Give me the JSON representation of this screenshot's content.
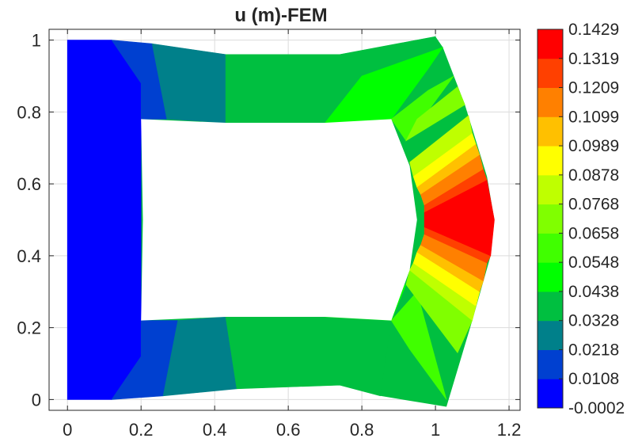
{
  "chart_data": {
    "type": "heatmap",
    "title": "u (m)-FEM",
    "xlabel": "",
    "ylabel": "",
    "xlim": [
      -0.05,
      1.23
    ],
    "ylim": [
      -0.03,
      1.03
    ],
    "xticks": [
      0,
      0.2,
      0.4,
      0.6,
      0.8,
      1,
      1.2
    ],
    "xtick_labels": [
      "0",
      "0.2",
      "0.4",
      "0.6",
      "0.8",
      "1",
      "1.2"
    ],
    "yticks": [
      0,
      0.2,
      0.4,
      0.6,
      0.8,
      1
    ],
    "ytick_labels": [
      "0",
      "0.2",
      "0.4",
      "0.6",
      "0.8",
      "1"
    ],
    "grid": true,
    "colorbar": {
      "position": "right",
      "min": -0.0002,
      "max": 0.1429,
      "levels": [
        -0.0002,
        0.0108,
        0.0218,
        0.0328,
        0.0438,
        0.0548,
        0.0658,
        0.0768,
        0.0878,
        0.0989,
        0.1099,
        0.1209,
        0.1319,
        0.1429
      ],
      "level_labels": [
        "-0.0002",
        "0.0108",
        "0.0218",
        "0.0328",
        "0.0438",
        "0.0548",
        "0.0658",
        "0.0768",
        "0.0878",
        "0.0989",
        "0.1099",
        "0.1209",
        "0.1319",
        "0.1429"
      ],
      "colors": [
        "#0000ff",
        "#0040d0",
        "#00808a",
        "#00bf40",
        "#00ff00",
        "#40ff00",
        "#80ff00",
        "#bfff00",
        "#ffff00",
        "#ffc000",
        "#ff8000",
        "#ff4000",
        "#ff0000"
      ]
    },
    "field_regions": [
      {
        "level": 0,
        "outline": [
          [
            0,
            0
          ],
          [
            0.12,
            0
          ],
          [
            0.2,
            0.12
          ],
          [
            0.2,
            0.88
          ],
          [
            0.12,
            1
          ],
          [
            0,
            1
          ]
        ]
      },
      {
        "level": 1,
        "outline": [
          [
            0.12,
            0
          ],
          [
            0.26,
            0.01
          ],
          [
            0.3,
            0.22
          ],
          [
            0.2,
            0.22
          ],
          [
            0.2,
            0.12
          ]
        ]
      },
      {
        "level": 1,
        "outline": [
          [
            0.12,
            1
          ],
          [
            0.2,
            0.88
          ],
          [
            0.2,
            0.78
          ],
          [
            0.27,
            0.78
          ],
          [
            0.23,
            0.99
          ]
        ]
      },
      {
        "level": 2,
        "outline": [
          [
            0.26,
            0.01
          ],
          [
            0.46,
            0.03
          ],
          [
            0.43,
            0.23
          ],
          [
            0.3,
            0.22
          ]
        ]
      },
      {
        "level": 2,
        "outline": [
          [
            0.23,
            0.99
          ],
          [
            0.27,
            0.78
          ],
          [
            0.43,
            0.77
          ],
          [
            0.43,
            0.96
          ]
        ]
      },
      {
        "level": 3,
        "outline": [
          [
            0.46,
            0.03
          ],
          [
            0.74,
            0.04
          ],
          [
            0.85,
            0.01
          ],
          [
            0.88,
            0.22
          ],
          [
            0.7,
            0.23
          ],
          [
            0.43,
            0.23
          ]
        ]
      },
      {
        "level": 3,
        "outline": [
          [
            0.43,
            0.96
          ],
          [
            0.74,
            0.96
          ],
          [
            1.0,
            1.01
          ],
          [
            0.9,
            0.78
          ],
          [
            0.7,
            0.77
          ],
          [
            0.43,
            0.77
          ]
        ]
      },
      {
        "level": 4,
        "outline": [
          [
            0.7,
            0.23
          ],
          [
            0.88,
            0.22
          ],
          [
            0.92,
            0.32
          ],
          [
            0.78,
            0.24
          ]
        ]
      },
      {
        "level": 4,
        "outline": [
          [
            0.7,
            0.77
          ],
          [
            0.88,
            0.78
          ],
          [
            0.98,
            0.92
          ],
          [
            1.02,
            0.98
          ],
          [
            0.8,
            0.9
          ]
        ]
      },
      {
        "level": 5,
        "outline": [
          [
            0.88,
            0.22
          ],
          [
            0.93,
            0.14
          ],
          [
            1.03,
            0.0
          ],
          [
            0.95,
            0.3
          ]
        ]
      },
      {
        "level": 5,
        "outline": [
          [
            0.88,
            0.78
          ],
          [
            0.98,
            0.86
          ],
          [
            1.05,
            0.9
          ],
          [
            0.92,
            0.72
          ]
        ]
      },
      {
        "level": 6,
        "outline": [
          [
            0.92,
            0.32
          ],
          [
            1.06,
            0.13
          ],
          [
            1.1,
            0.22
          ],
          [
            0.93,
            0.36
          ]
        ]
      },
      {
        "level": 6,
        "outline": [
          [
            0.92,
            0.72
          ],
          [
            1.08,
            0.82
          ],
          [
            1.06,
            0.87
          ],
          [
            0.95,
            0.78
          ]
        ]
      },
      {
        "level": 7,
        "outline": [
          [
            0.93,
            0.36
          ],
          [
            1.1,
            0.22
          ],
          [
            1.11,
            0.26
          ],
          [
            0.94,
            0.38
          ]
        ]
      },
      {
        "level": 7,
        "outline": [
          [
            0.94,
            0.62
          ],
          [
            1.1,
            0.74
          ],
          [
            1.09,
            0.79
          ],
          [
            0.93,
            0.66
          ]
        ]
      },
      {
        "level": 8,
        "outline": [
          [
            0.94,
            0.38
          ],
          [
            1.11,
            0.26
          ],
          [
            1.12,
            0.3
          ],
          [
            0.95,
            0.41
          ]
        ]
      },
      {
        "level": 8,
        "outline": [
          [
            0.95,
            0.59
          ],
          [
            1.11,
            0.71
          ],
          [
            1.1,
            0.74
          ],
          [
            0.94,
            0.62
          ]
        ]
      },
      {
        "level": 9,
        "outline": [
          [
            0.95,
            0.41
          ],
          [
            1.12,
            0.3
          ],
          [
            1.13,
            0.33
          ],
          [
            0.96,
            0.43
          ]
        ]
      },
      {
        "level": 9,
        "outline": [
          [
            0.96,
            0.57
          ],
          [
            1.12,
            0.68
          ],
          [
            1.11,
            0.71
          ],
          [
            0.95,
            0.59
          ]
        ]
      },
      {
        "level": 10,
        "outline": [
          [
            0.96,
            0.43
          ],
          [
            1.13,
            0.33
          ],
          [
            1.14,
            0.38
          ],
          [
            0.97,
            0.46
          ]
        ]
      },
      {
        "level": 10,
        "outline": [
          [
            0.97,
            0.54
          ],
          [
            1.13,
            0.64
          ],
          [
            1.12,
            0.68
          ],
          [
            0.96,
            0.57
          ]
        ]
      },
      {
        "level": 11,
        "outline": [
          [
            0.97,
            0.46
          ],
          [
            1.14,
            0.38
          ],
          [
            1.15,
            0.4
          ],
          [
            0.97,
            0.48
          ]
        ]
      },
      {
        "level": 11,
        "outline": [
          [
            0.97,
            0.52
          ],
          [
            1.14,
            0.61
          ],
          [
            1.13,
            0.64
          ],
          [
            0.97,
            0.54
          ]
        ]
      },
      {
        "level": 12,
        "outline": [
          [
            0.97,
            0.48
          ],
          [
            1.15,
            0.4
          ],
          [
            1.16,
            0.5
          ],
          [
            1.14,
            0.61
          ],
          [
            0.97,
            0.52
          ]
        ]
      }
    ],
    "hole_outline": [
      [
        0.2,
        0.22
      ],
      [
        0.43,
        0.23
      ],
      [
        0.7,
        0.23
      ],
      [
        0.88,
        0.22
      ],
      [
        0.93,
        0.36
      ],
      [
        0.95,
        0.5
      ],
      [
        0.93,
        0.65
      ],
      [
        0.88,
        0.78
      ],
      [
        0.7,
        0.77
      ],
      [
        0.43,
        0.77
      ],
      [
        0.2,
        0.78
      ],
      [
        0.205,
        0.5
      ]
    ],
    "domain_outline": [
      [
        0,
        0
      ],
      [
        0.26,
        0.01
      ],
      [
        0.46,
        0.03
      ],
      [
        0.74,
        0.04
      ],
      [
        0.85,
        0.01
      ],
      [
        1.03,
        -0.02
      ],
      [
        1.1,
        0.22
      ],
      [
        1.15,
        0.4
      ],
      [
        1.16,
        0.5
      ],
      [
        1.14,
        0.62
      ],
      [
        1.08,
        0.82
      ],
      [
        1.02,
        0.98
      ],
      [
        1.0,
        1.01
      ],
      [
        0.74,
        0.96
      ],
      [
        0.43,
        0.96
      ],
      [
        0.23,
        0.99
      ],
      [
        0,
        1
      ]
    ]
  }
}
